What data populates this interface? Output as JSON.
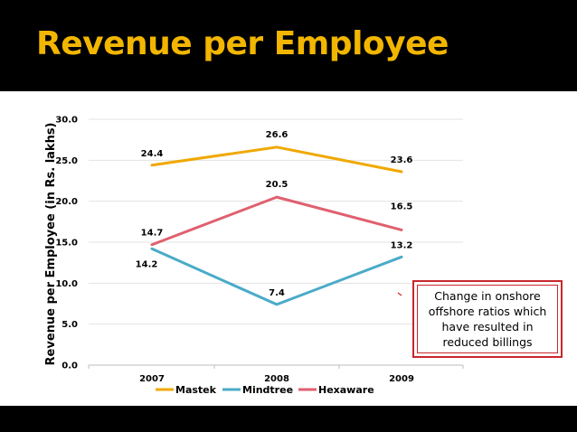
{
  "slide": {
    "title": "Revenue per Employee"
  },
  "annotation": {
    "text": "Change in onshore offshore ratios which have resulted in reduced billings"
  },
  "colors": {
    "Mastek": "#f0a800",
    "Mindtree": "#4aabc8",
    "Hexaware": "#e0606f",
    "title": "#f2b600",
    "box": "#c8272d"
  },
  "chart_data": {
    "type": "line",
    "categories": [
      "2007",
      "2008",
      "2009"
    ],
    "series": [
      {
        "name": "Mastek",
        "values": [
          24.4,
          26.6,
          23.6
        ]
      },
      {
        "name": "Mindtree",
        "values": [
          14.2,
          7.4,
          13.2
        ]
      },
      {
        "name": "Hexaware",
        "values": [
          14.7,
          20.5,
          16.5
        ]
      }
    ],
    "ylabel": "Revenue per Employee (in Rs. lakhs)",
    "ylim": [
      0,
      30
    ],
    "yticks": [
      "0.0",
      "5.0",
      "10.0",
      "15.0",
      "20.0",
      "25.0",
      "30.0"
    ],
    "grid": true,
    "legend": "bottom"
  }
}
